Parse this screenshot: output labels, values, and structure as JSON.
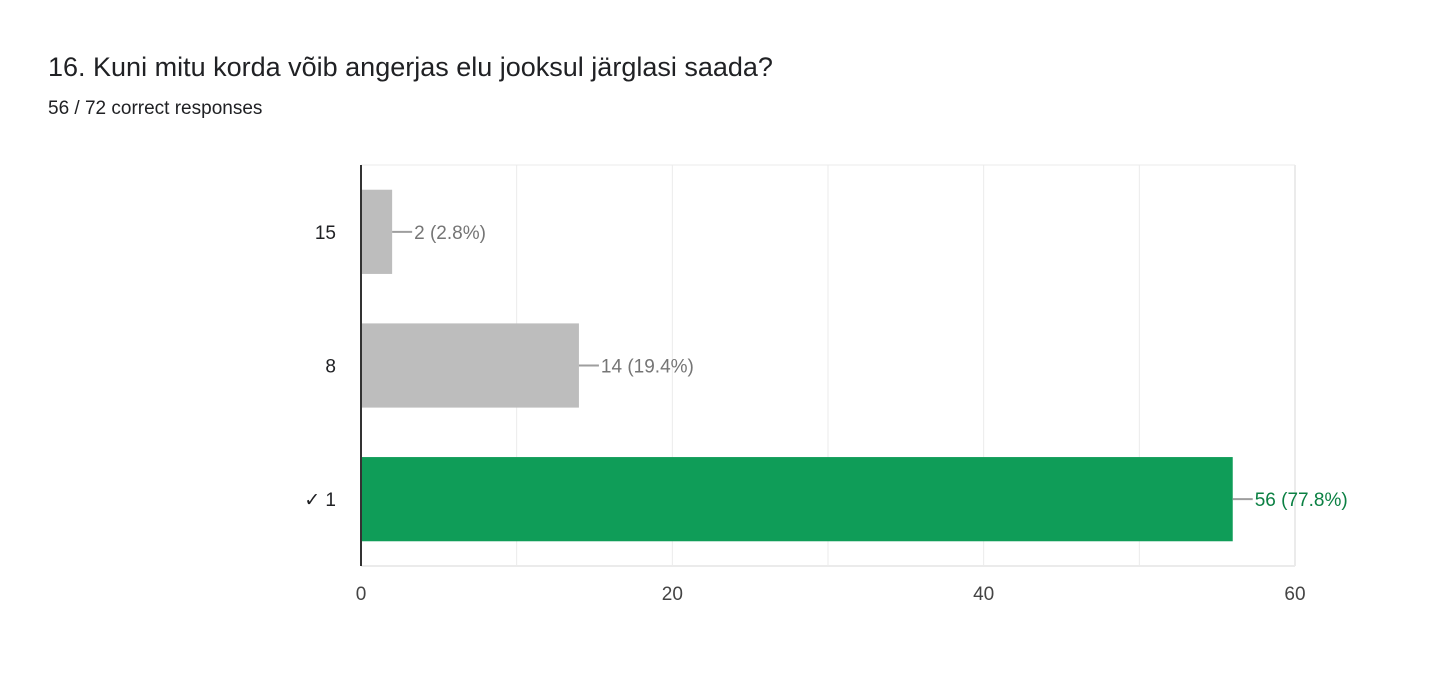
{
  "question": {
    "title": "16. Kuni mitu korda võib angerjas elu jooksul järglasi saada?",
    "summary": "56 / 72 correct responses"
  },
  "chart_data": {
    "type": "bar",
    "orientation": "horizontal",
    "categories": [
      "15",
      "8",
      "✓ 1"
    ],
    "values": [
      2,
      14,
      56
    ],
    "data_labels": [
      "2 (2.8%)",
      "14 (19.4%)",
      "56 (77.8%)"
    ],
    "correct": [
      false,
      false,
      true
    ],
    "xlim": [
      0,
      60
    ],
    "xticks": [
      0,
      20,
      40,
      60
    ],
    "grid": true,
    "colors": {
      "incorrect": "#bdbdbd",
      "correct": "#0f9d58",
      "incorrect_label": "#757575",
      "correct_label": "#0b8043"
    }
  }
}
